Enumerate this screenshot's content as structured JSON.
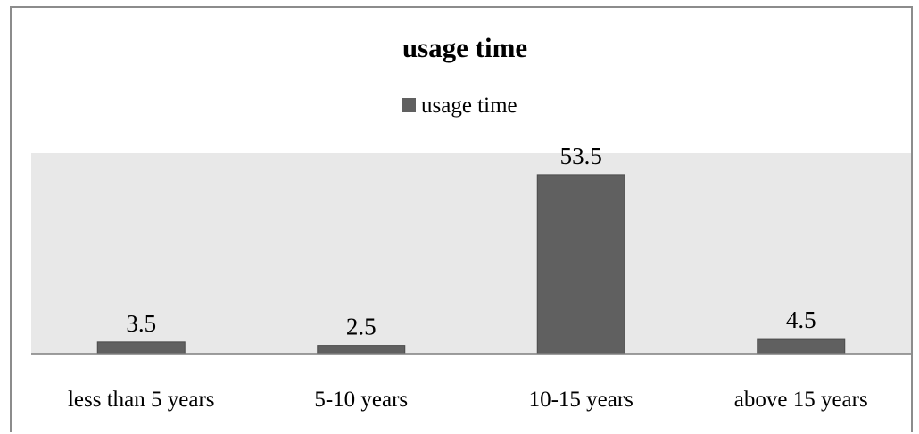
{
  "chart_data": {
    "type": "bar",
    "title": "usage time",
    "categories": [
      "less than 5 years",
      "5-10 years",
      "10-15 years",
      "above 15 years"
    ],
    "series": [
      {
        "name": "usage time",
        "values": [
          3.5,
          2.5,
          53.5,
          4.5
        ]
      }
    ],
    "data_labels": [
      "3.5",
      "2.5",
      "53.5",
      "4.5"
    ],
    "xlabel": "",
    "ylabel": "",
    "ylim": [
      0,
      54
    ],
    "legend_position": "top-center",
    "grid": false,
    "colors": {
      "bar": "#606060",
      "plot_background": "#e8e8e8",
      "axis_line": "#7f7f7f",
      "frame": "#8c8c8c"
    }
  }
}
